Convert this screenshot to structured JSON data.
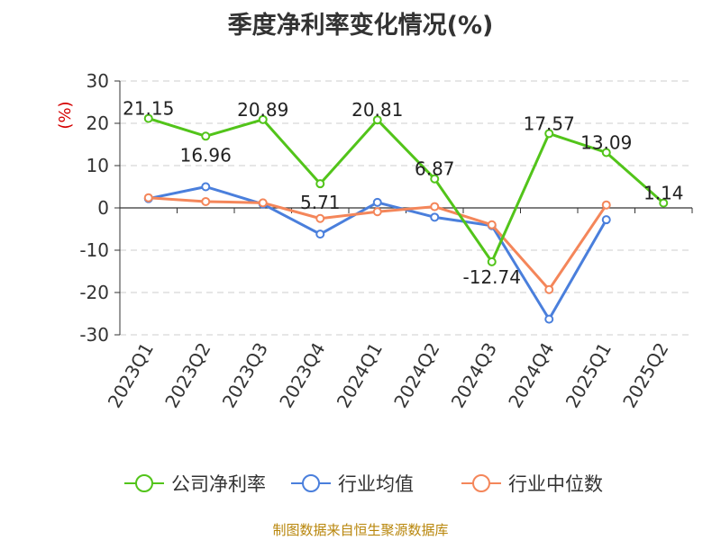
{
  "chart_data": {
    "type": "line",
    "title": "季度净利率变化情况(%)",
    "ylabel": "(%)",
    "categories": [
      "2023Q1",
      "2023Q2",
      "2023Q3",
      "2023Q4",
      "2024Q1",
      "2024Q2",
      "2024Q3",
      "2024Q4",
      "2025Q1",
      "2025Q2"
    ],
    "ylim": [
      -30,
      30
    ],
    "yticks": [
      "30",
      "20",
      "10",
      "0",
      "-10",
      "-20",
      "-30"
    ],
    "grid": true,
    "legend_position": "bottom",
    "series": [
      {
        "name": "公司净利率",
        "color": "#52c41a",
        "values": [
          21.15,
          16.96,
          20.89,
          5.71,
          20.81,
          6.87,
          -12.74,
          17.57,
          13.09,
          1.14
        ],
        "labels": [
          "21.15",
          "16.96",
          "20.89",
          "5.71",
          "20.81",
          "6.87",
          "-12.74",
          "17.57",
          "13.09",
          "1.14"
        ]
      },
      {
        "name": "行业均值",
        "color": "#4a7fdc",
        "values": [
          2.2,
          5.0,
          0.9,
          -6.2,
          1.3,
          -2.2,
          -4.2,
          -26.3,
          -2.8,
          null
        ]
      },
      {
        "name": "行业中位数",
        "color": "#f4865a",
        "values": [
          2.4,
          1.5,
          1.2,
          -2.5,
          -0.9,
          0.3,
          -4.0,
          -19.3,
          0.7,
          null
        ]
      }
    ]
  },
  "footer": {
    "source": "制图数据来自恒生聚源数据库"
  }
}
